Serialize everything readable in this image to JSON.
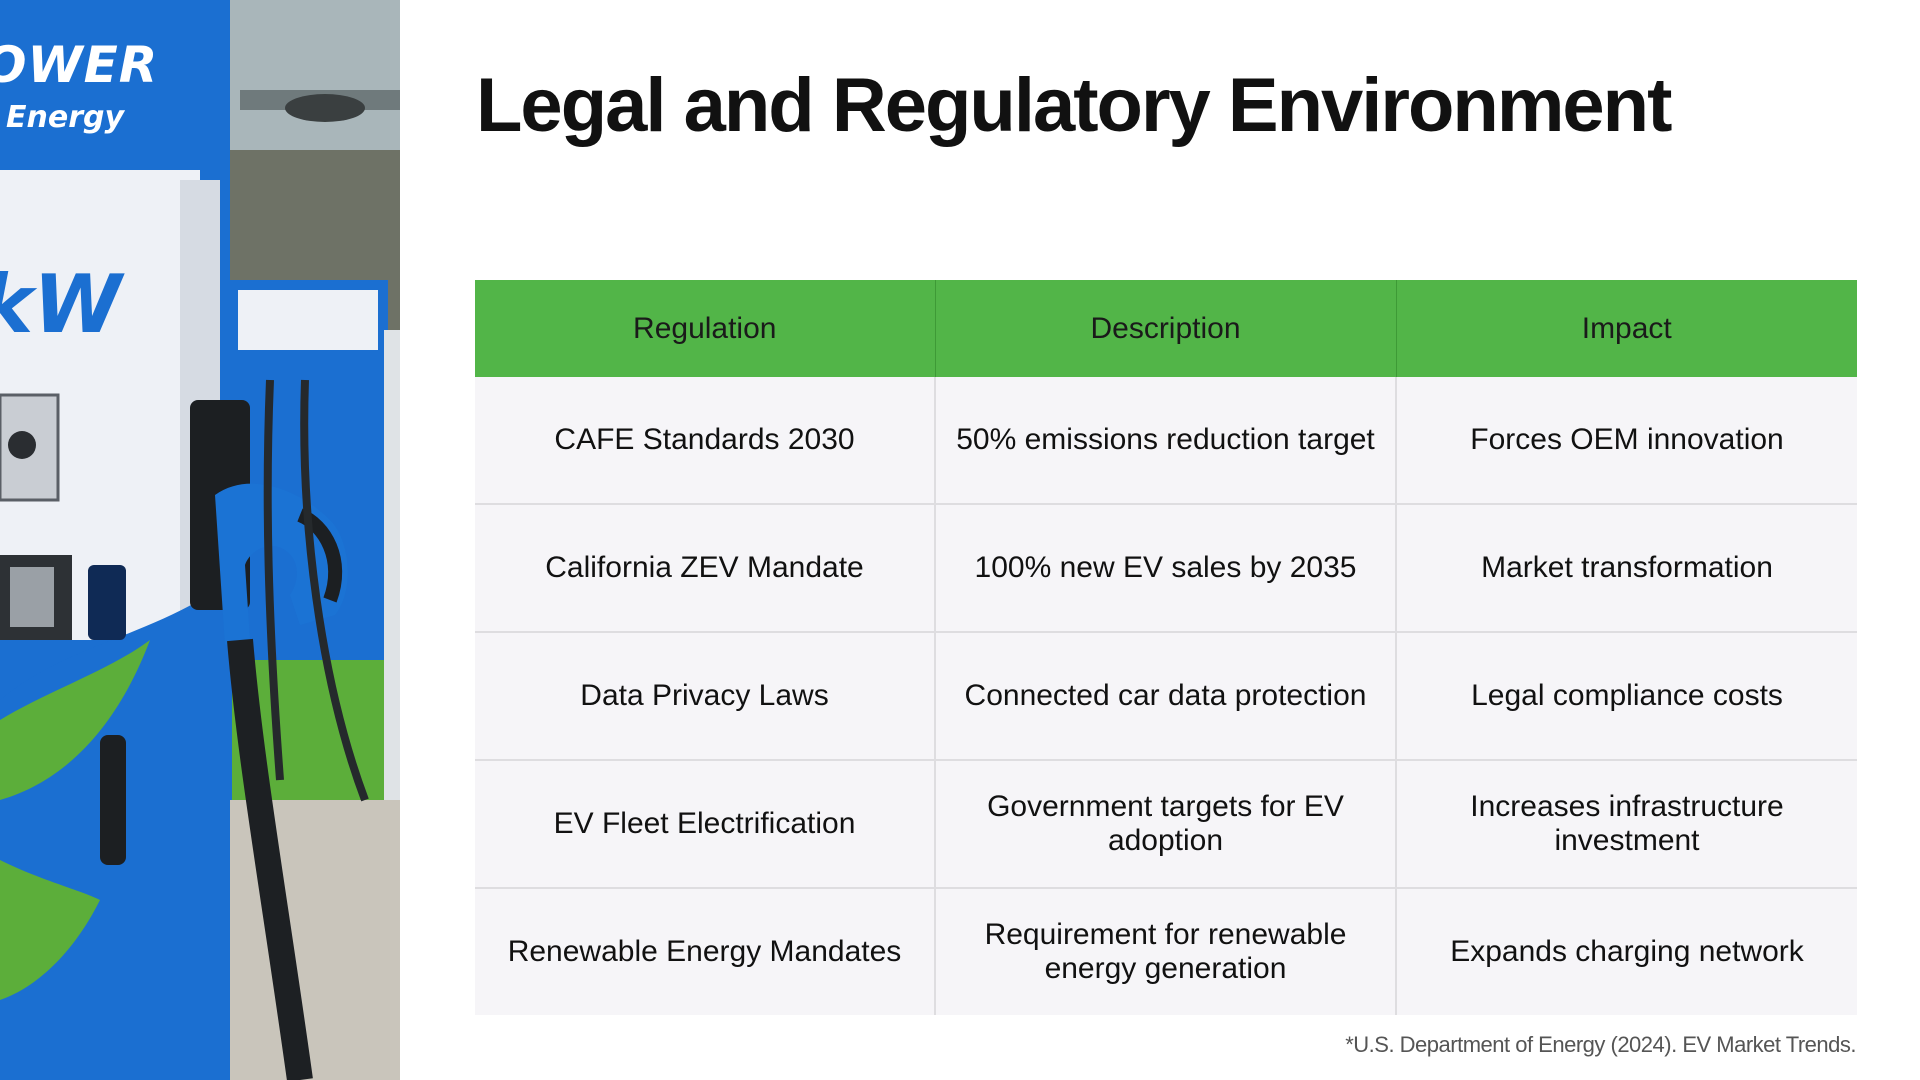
{
  "slide": {
    "title": "Legal and Regulatory Environment",
    "footnote": "*U.S. Department of Energy (2024). EV Market Trends."
  },
  "photo": {
    "brand_power": "OWER",
    "brand_energy": "Energy",
    "brand_kw": "kW",
    "colors": {
      "station_blue": "#1b6fd1",
      "station_white": "#eef1f6",
      "leaf_green": "#5cae3a"
    }
  },
  "table": {
    "headers": [
      "Regulation",
      "Description",
      "Impact"
    ],
    "rows": [
      [
        "CAFE Standards 2030",
        "50% emissions reduction target",
        "Forces OEM innovation"
      ],
      [
        "California ZEV Mandate",
        "100% new EV sales by 2035",
        "Market transformation"
      ],
      [
        "Data Privacy Laws",
        "Connected car data protection",
        "Legal compliance costs"
      ],
      [
        "EV Fleet Electrification",
        "Government targets for EV adoption",
        "Increases infrastructure investment"
      ],
      [
        "Renewable Energy Mandates",
        "Requirement for renewable energy generation",
        "Expands charging network"
      ]
    ],
    "colors": {
      "header_bg": "#52b548",
      "row_bg": "#f6f5f8",
      "border": "#dedde0"
    }
  }
}
